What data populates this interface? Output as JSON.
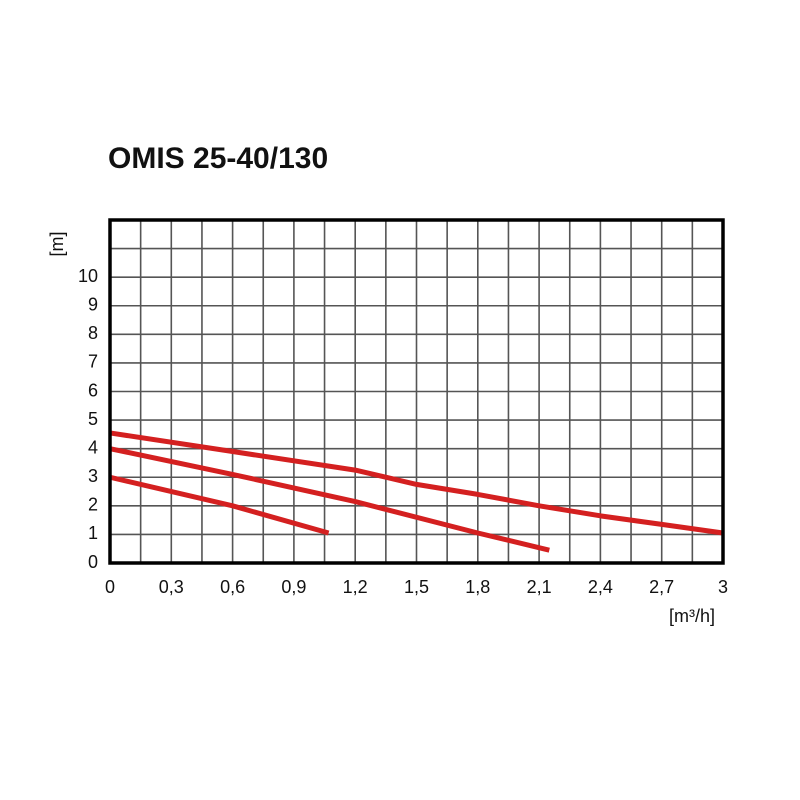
{
  "chart_data": {
    "type": "line",
    "title": "OMIS 25-40/130",
    "y_label": "[m]",
    "x_label": "[m³/h]",
    "xlim": [
      0,
      3
    ],
    "ylim": [
      0,
      12
    ],
    "xticks": [
      0,
      {
        "value": 0.3,
        "label": "0,3"
      },
      {
        "value": 0.6,
        "label": "0,6"
      },
      {
        "value": 0.9,
        "label": "0,9"
      },
      {
        "value": 1.2,
        "label": "1,2"
      },
      {
        "value": 1.5,
        "label": "1,5"
      },
      {
        "value": 1.8,
        "label": "1,8"
      },
      {
        "value": 2.1,
        "label": "2,1"
      },
      {
        "value": 2.4,
        "label": "2,4"
      },
      {
        "value": 2.7,
        "label": "2,7"
      },
      3
    ],
    "yticks": [
      0,
      1,
      2,
      3,
      4,
      5,
      6,
      7,
      8,
      9,
      10
    ],
    "xgrid": [
      0.15,
      0.3,
      0.45,
      0.6,
      0.75,
      0.9,
      1.05,
      1.2,
      1.35,
      1.5,
      1.65,
      1.8,
      1.95,
      2.1,
      2.25,
      2.4,
      2.55,
      2.7,
      2.85
    ],
    "ygrid": [
      1,
      2,
      3,
      4,
      5,
      6,
      7,
      8,
      9,
      10,
      11
    ],
    "grid": true,
    "series": [
      {
        "color": "#d42020",
        "x": [
          0,
          0.6,
          1.2,
          1.5,
          1.8,
          2.1,
          2.4,
          2.7,
          3
        ],
        "values": [
          4.55,
          3.9,
          3.25,
          2.75,
          2.4,
          2.0,
          1.65,
          1.35,
          1.05
        ]
      },
      {
        "color": "#d42020",
        "x": [
          0,
          0.6,
          1.2,
          1.8,
          2.15
        ],
        "values": [
          4.0,
          3.1,
          2.15,
          1.05,
          0.45
        ]
      },
      {
        "color": "#d42020",
        "x": [
          0,
          0.6,
          1.07
        ],
        "values": [
          3.0,
          2.0,
          1.05
        ]
      }
    ]
  }
}
